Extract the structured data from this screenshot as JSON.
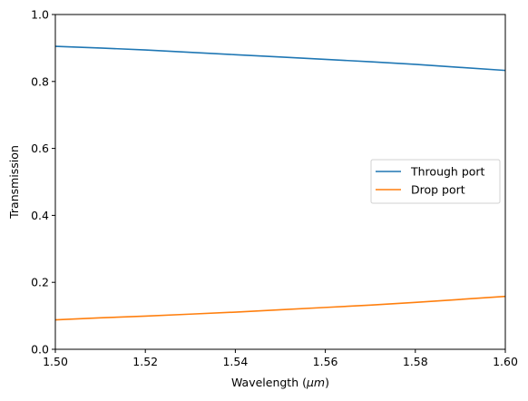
{
  "chart_data": {
    "type": "line",
    "xlabel": "Wavelength (",
    "xlabel_math": "μm",
    "xlabel_close": ")",
    "ylabel": "Transmission",
    "xlim": [
      1.5,
      1.6
    ],
    "ylim": [
      0.0,
      1.0
    ],
    "xticks": [
      "1.50",
      "1.52",
      "1.54",
      "1.56",
      "1.58",
      "1.60"
    ],
    "yticks": [
      "0.0",
      "0.2",
      "0.4",
      "0.6",
      "0.8",
      "1.0"
    ],
    "grid": false,
    "legend_position": "center-right",
    "series": [
      {
        "name": "Through port",
        "color": "#1f77b4",
        "x": [
          1.5,
          1.51,
          1.52,
          1.53,
          1.54,
          1.55,
          1.56,
          1.57,
          1.58,
          1.59,
          1.6
        ],
        "y": [
          0.905,
          0.9,
          0.894,
          0.887,
          0.88,
          0.873,
          0.866,
          0.859,
          0.851,
          0.842,
          0.833
        ]
      },
      {
        "name": "Drop port",
        "color": "#ff7f0e",
        "x": [
          1.5,
          1.51,
          1.52,
          1.53,
          1.54,
          1.55,
          1.56,
          1.57,
          1.58,
          1.59,
          1.6
        ],
        "y": [
          0.088,
          0.094,
          0.099,
          0.105,
          0.111,
          0.118,
          0.125,
          0.132,
          0.14,
          0.149,
          0.158
        ]
      }
    ]
  }
}
